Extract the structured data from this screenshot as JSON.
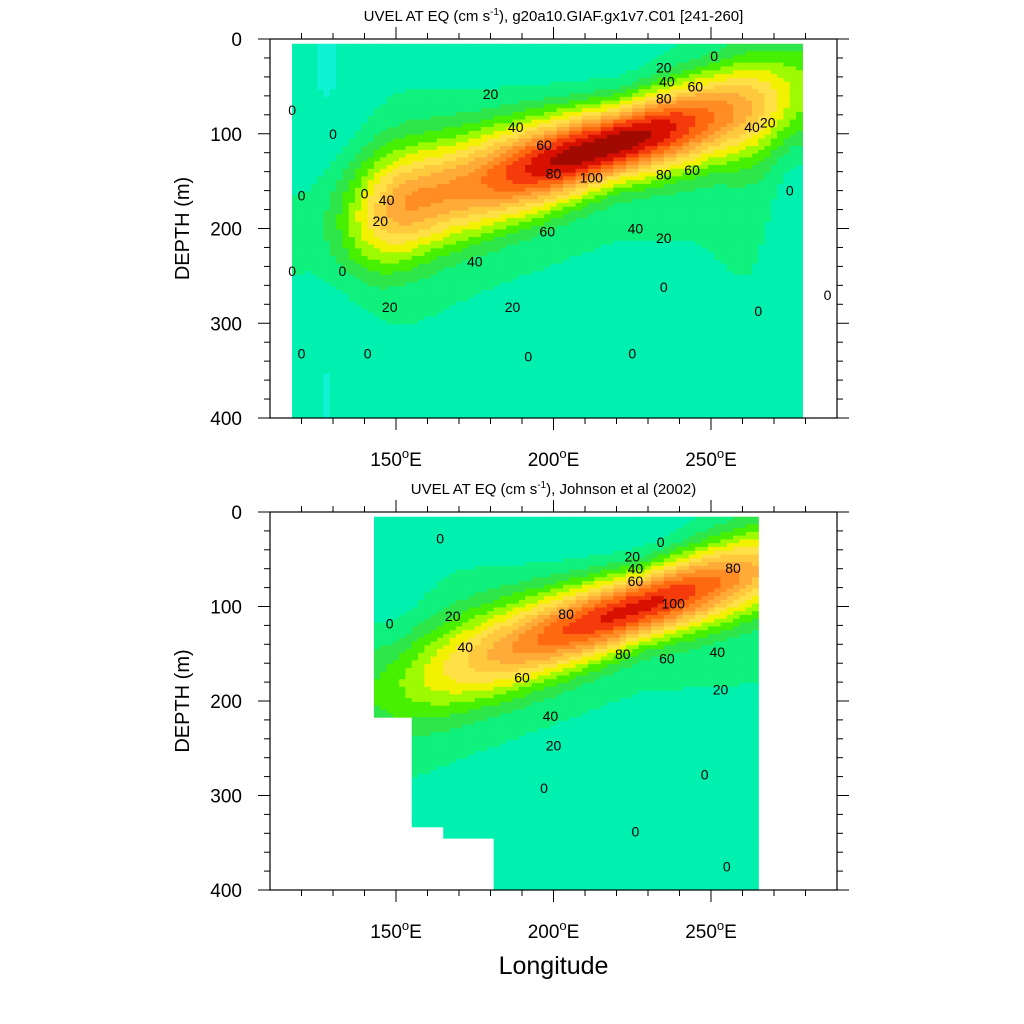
{
  "chart_data": [
    {
      "type": "contour",
      "title_main": "UVEL AT EQ (cm s",
      "title_sup": "-1",
      "title_rest": "), g20a10.GIAF.gx1v7.C01 [241-260]",
      "xlabel": "",
      "ylabel": "DEPTH (m)",
      "xlim": [
        110,
        290
      ],
      "ylim": [
        400,
        0
      ],
      "x_ticks": [
        {
          "value": 150,
          "num": "150",
          "sup": "o",
          "suffix": "E"
        },
        {
          "value": 200,
          "num": "200",
          "sup": "o",
          "suffix": "E"
        },
        {
          "value": 250,
          "num": "250",
          "sup": "o",
          "suffix": "E"
        }
      ],
      "y_ticks": [
        0,
        100,
        200,
        300,
        400
      ],
      "data_extent": {
        "lon": [
          117,
          279
        ],
        "depth": [
          5,
          400
        ]
      },
      "levels": [
        -20,
        -10,
        0,
        10,
        20,
        30,
        40,
        50,
        60,
        70,
        80,
        90,
        100,
        110,
        120
      ],
      "jet_core": {
        "lon": 220,
        "depth": 110,
        "max_speed": 120
      },
      "contour_labels": [
        {
          "value": "0",
          "lon": 117,
          "depth": 75
        },
        {
          "value": "0",
          "lon": 130,
          "depth": 100
        },
        {
          "value": "0",
          "lon": 120,
          "depth": 165
        },
        {
          "value": "0",
          "lon": 117,
          "depth": 245
        },
        {
          "value": "0",
          "lon": 133,
          "depth": 245
        },
        {
          "value": "0",
          "lon": 120,
          "depth": 332
        },
        {
          "value": "0",
          "lon": 141,
          "depth": 332
        },
        {
          "value": "0",
          "lon": 140,
          "depth": 163
        },
        {
          "value": "20",
          "lon": 145,
          "depth": 192
        },
        {
          "value": "40",
          "lon": 147,
          "depth": 170
        },
        {
          "value": "20",
          "lon": 148,
          "depth": 283
        },
        {
          "value": "20",
          "lon": 180,
          "depth": 58
        },
        {
          "value": "40",
          "lon": 188,
          "depth": 93
        },
        {
          "value": "60",
          "lon": 197,
          "depth": 112
        },
        {
          "value": "80",
          "lon": 200,
          "depth": 142
        },
        {
          "value": "100",
          "lon": 212,
          "depth": 146
        },
        {
          "value": "80",
          "lon": 235,
          "depth": 143
        },
        {
          "value": "60",
          "lon": 244,
          "depth": 138
        },
        {
          "value": "60",
          "lon": 198,
          "depth": 203
        },
        {
          "value": "40",
          "lon": 175,
          "depth": 235
        },
        {
          "value": "40",
          "lon": 226,
          "depth": 200
        },
        {
          "value": "20",
          "lon": 187,
          "depth": 283
        },
        {
          "value": "20",
          "lon": 235,
          "depth": 210
        },
        {
          "value": "0",
          "lon": 235,
          "depth": 262
        },
        {
          "value": "0",
          "lon": 192,
          "depth": 335
        },
        {
          "value": "0",
          "lon": 225,
          "depth": 332
        },
        {
          "value": "20",
          "lon": 235,
          "depth": 30
        },
        {
          "value": "40",
          "lon": 236,
          "depth": 45
        },
        {
          "value": "60",
          "lon": 245,
          "depth": 50
        },
        {
          "value": "80",
          "lon": 235,
          "depth": 63
        },
        {
          "value": "0",
          "lon": 251,
          "depth": 18
        },
        {
          "value": "40",
          "lon": 263,
          "depth": 93
        },
        {
          "value": "20",
          "lon": 268,
          "depth": 88
        },
        {
          "value": "0",
          "lon": 275,
          "depth": 160
        },
        {
          "value": "0",
          "lon": 265,
          "depth": 287
        },
        {
          "value": "0",
          "lon": 287,
          "depth": 270
        }
      ]
    },
    {
      "type": "contour",
      "title_main": "UVEL AT EQ (cm s",
      "title_sup": "-1",
      "title_rest": "), Johnson et al (2002)",
      "xlabel": "Longitude",
      "ylabel": "DEPTH (m)",
      "xlim": [
        110,
        290
      ],
      "ylim": [
        400,
        0
      ],
      "x_ticks": [
        {
          "value": 150,
          "num": "150",
          "sup": "o",
          "suffix": "E"
        },
        {
          "value": 200,
          "num": "200",
          "sup": "o",
          "suffix": "E"
        },
        {
          "value": 250,
          "num": "250",
          "sup": "o",
          "suffix": "E"
        }
      ],
      "y_ticks": [
        0,
        100,
        200,
        300,
        400
      ],
      "data_extent": {
        "lon": [
          143,
          265
        ],
        "depth": [
          5,
          400
        ]
      },
      "missing_region_polygon": [
        [
          143,
          216
        ],
        [
          156,
          216
        ],
        [
          156,
          334
        ],
        [
          165,
          334
        ],
        [
          165,
          346
        ],
        [
          181,
          346
        ],
        [
          181,
          400
        ],
        [
          143,
          400
        ]
      ],
      "levels": [
        -20,
        -10,
        0,
        10,
        20,
        30,
        40,
        50,
        60,
        70,
        80,
        90,
        100,
        110,
        120
      ],
      "jet_core": {
        "lon": 228,
        "depth": 100,
        "max_speed": 110
      },
      "contour_labels": [
        {
          "value": "0",
          "lon": 164,
          "depth": 28
        },
        {
          "value": "0",
          "lon": 148,
          "depth": 118
        },
        {
          "value": "20",
          "lon": 168,
          "depth": 110
        },
        {
          "value": "40",
          "lon": 172,
          "depth": 143
        },
        {
          "value": "60",
          "lon": 190,
          "depth": 175
        },
        {
          "value": "80",
          "lon": 204,
          "depth": 108
        },
        {
          "value": "80",
          "lon": 222,
          "depth": 150
        },
        {
          "value": "60",
          "lon": 236,
          "depth": 155
        },
        {
          "value": "40",
          "lon": 252,
          "depth": 148
        },
        {
          "value": "100",
          "lon": 238,
          "depth": 97
        },
        {
          "value": "0",
          "lon": 234,
          "depth": 32
        },
        {
          "value": "20",
          "lon": 225,
          "depth": 47
        },
        {
          "value": "40",
          "lon": 226,
          "depth": 60
        },
        {
          "value": "60",
          "lon": 226,
          "depth": 73
        },
        {
          "value": "80",
          "lon": 257,
          "depth": 59
        },
        {
          "value": "20",
          "lon": 253,
          "depth": 188
        },
        {
          "value": "40",
          "lon": 199,
          "depth": 216
        },
        {
          "value": "20",
          "lon": 200,
          "depth": 247
        },
        {
          "value": "0",
          "lon": 197,
          "depth": 292
        },
        {
          "value": "0",
          "lon": 248,
          "depth": 278
        },
        {
          "value": "0",
          "lon": 226,
          "depth": 338
        },
        {
          "value": "0",
          "lon": 255,
          "depth": 375
        }
      ]
    }
  ]
}
